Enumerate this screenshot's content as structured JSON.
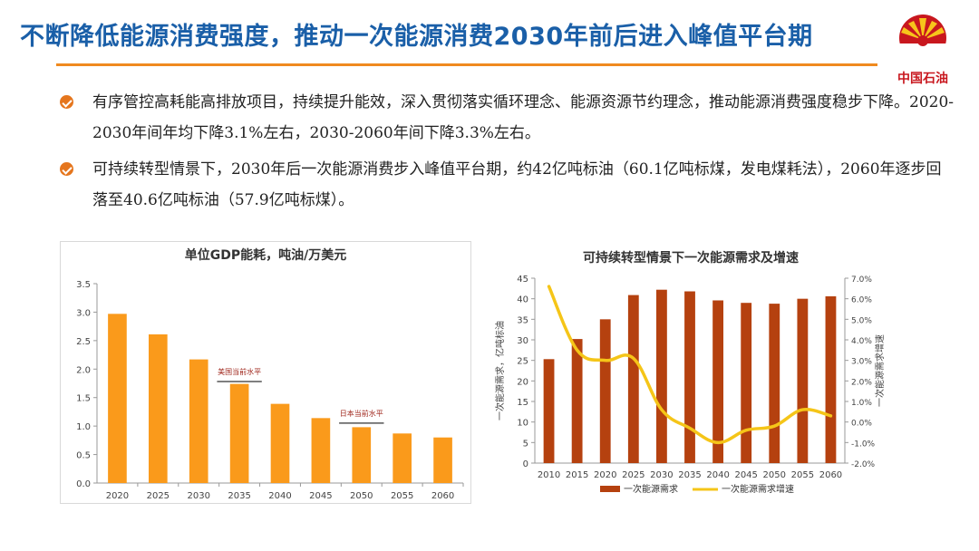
{
  "header": {
    "title": "不断降低能源消费强度，推动一次能源消费2030年前后进入峰值平台期",
    "logo_text": "中国石油",
    "accent_color": "#f08a1f",
    "title_color": "#1a5fa8",
    "logo_color": "#c8171e"
  },
  "bullets": [
    {
      "icon": "bullet-arrow-icon",
      "text": "有序管控高耗能高排放项目，持续提升能效，深入贯彻落实循环理念、能源资源节约理念，推动能源消费强度稳步下降。2020-2030年间年均下降3.1%左右，2030-2060年间下降3.3%左右。"
    },
    {
      "icon": "bullet-arrow-icon",
      "text": "可持续转型情景下，2030年后一次能源消费步入峰值平台期，约42亿吨标油（60.1亿吨标煤，发电煤耗法），2060年逐步回落至40.6亿吨标油（57.9亿吨标煤）。"
    }
  ],
  "chart_data": [
    {
      "type": "bar",
      "title": "单位GDP能耗，吨油/万美元",
      "categories": [
        "2020",
        "2025",
        "2030",
        "2035",
        "2040",
        "2045",
        "2050",
        "2055",
        "2060"
      ],
      "values": [
        2.97,
        2.61,
        2.17,
        1.74,
        1.39,
        1.14,
        0.98,
        0.87,
        0.8
      ],
      "ylim": [
        0,
        3.5
      ],
      "yticks": [
        "0.0",
        "0.5",
        "1.0",
        "1.5",
        "2.0",
        "2.5",
        "3.0",
        "3.5"
      ],
      "bar_color": "#fa9a1b",
      "grid": false,
      "annotations": [
        {
          "text": "美国当前水平",
          "category": "2035",
          "value": 1.75
        },
        {
          "text": "日本当前水平",
          "category": "2050",
          "value": 1.02
        }
      ]
    },
    {
      "type": "bar+line",
      "title": "可持续转型情景下一次能源需求及增速",
      "categories": [
        "2010",
        "2015",
        "2020",
        "2025",
        "2030",
        "2035",
        "2040",
        "2045",
        "2050",
        "2055",
        "2060"
      ],
      "series": [
        {
          "name": "一次能源需求",
          "type": "bar",
          "axis": "left",
          "color": "#b5410f",
          "values": [
            25.3,
            30.2,
            35.0,
            40.9,
            42.2,
            41.8,
            39.6,
            39.0,
            38.8,
            40.0,
            40.6
          ]
        },
        {
          "name": "一次能源需求增速",
          "type": "line",
          "axis": "right",
          "color": "#f5c518",
          "values": [
            6.6,
            3.5,
            3.0,
            3.1,
            0.6,
            -0.3,
            -1.0,
            -0.4,
            -0.2,
            0.6,
            0.3
          ]
        }
      ],
      "ylabel_left": "一次能源需求，亿吨标油",
      "ylabel_right": "一次能源需求增速",
      "ylim_left": [
        0,
        45
      ],
      "ylim_right": [
        -2.0,
        7.0
      ],
      "yticks_left": [
        "0",
        "5",
        "10",
        "15",
        "20",
        "25",
        "30",
        "35",
        "40",
        "45"
      ],
      "yticks_right": [
        "-2.0%",
        "-1.0%",
        "0.0%",
        "1.0%",
        "2.0%",
        "3.0%",
        "4.0%",
        "5.0%",
        "6.0%",
        "7.0%"
      ],
      "legend_position": "bottom",
      "grid": false
    }
  ]
}
